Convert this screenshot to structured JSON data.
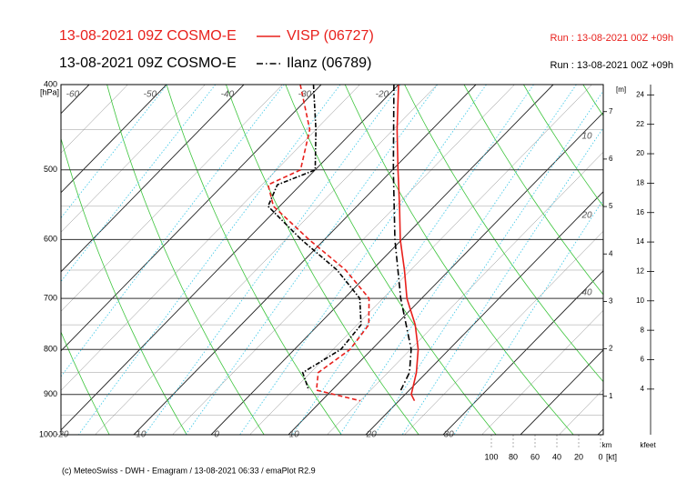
{
  "chart_data": {
    "type": "emagram",
    "series": [
      {
        "name": "VISP (06727)",
        "label": "13-08-2021 09Z COSMO-E",
        "run": "Run : 13-08-2021 00Z +09h",
        "color": "#e8201c",
        "dash": "solid",
        "pressure": [
          400,
          450,
          500,
          550,
          600,
          650,
          700,
          750,
          800,
          850,
          900,
          915
        ],
        "values": [
          -20,
          -14.5,
          -9.3,
          -4.5,
          -0.2,
          4.2,
          8.1,
          12.5,
          16,
          18.7,
          20.8,
          22
        ],
        "dew_pressure": [
          400,
          450,
          500,
          520,
          550,
          600,
          650,
          700,
          750,
          800,
          850,
          890,
          915
        ],
        "dewpoint": [
          -32.7,
          -25.8,
          -21.9,
          -24.2,
          -20.8,
          -12,
          -3.4,
          3.2,
          6.5,
          7.2,
          6,
          8,
          15
        ]
      },
      {
        "name": "Ilanz (06789)",
        "label": "13-08-2021 09Z COSMO-E",
        "run": "Run : 13-08-2021 00Z +09h",
        "color": "#000000",
        "dash": "dashdot",
        "pressure": [
          400,
          500,
          600,
          700,
          800,
          850,
          890
        ],
        "values": [
          -20.6,
          -9.9,
          -0.9,
          7.3,
          15.1,
          17.8,
          18.9
        ],
        "dew_pressure": [
          400,
          450,
          500,
          520,
          550,
          600,
          650,
          700,
          750,
          800,
          850,
          890
        ],
        "dewpoint": [
          -31,
          -25,
          -20,
          -23,
          -21.5,
          -13,
          -4.5,
          2,
          5.5,
          6,
          4,
          7
        ]
      }
    ],
    "ylim": [
      400,
      1000
    ],
    "yticks": [
      400,
      500,
      600,
      700,
      800,
      900,
      1000
    ],
    "ylabel": "[hPa]",
    "log_y": true,
    "temp_labels_top": [
      -60,
      -50,
      -40,
      -30,
      -20
    ],
    "temp_labels_bottom": [
      -20,
      -10,
      0,
      10,
      20,
      30
    ],
    "right_labels": [
      "10",
      "20",
      "40"
    ],
    "km_label": "[m]",
    "km_lim": [
      0.19,
      7.57
    ],
    "km_ticks": [
      1,
      2,
      3,
      4,
      5,
      6,
      7
    ],
    "km_axis_label": "km",
    "kfeet_lim": [
      0.9,
      24.7
    ],
    "kfeet_ticks": [
      4,
      6,
      8,
      10,
      12,
      14,
      16,
      18,
      20,
      22,
      24
    ],
    "kfeet_axis_label": "kfeet",
    "wind_lim": [
      100,
      0
    ],
    "wind_ticks": [
      100,
      80,
      60,
      40,
      20,
      0
    ],
    "wind_unit": "[kt]",
    "footer": "(c) MeteoSwiss - DWH - Emagram / 13-08-2021 06:33 / emaPlot R2.9"
  }
}
